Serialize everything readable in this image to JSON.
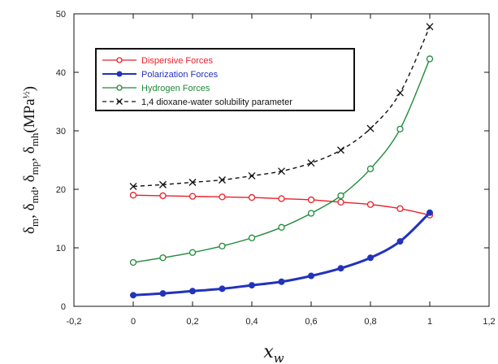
{
  "chart_data": {
    "type": "line",
    "title": "",
    "xlabel": "x_w",
    "ylabel": "δm, δmd, δmp, δmh(MPa½)",
    "xlim": [
      -0.2,
      1.2
    ],
    "ylim": [
      0,
      50
    ],
    "x_ticks": [
      "-0,2",
      "0",
      "0,2",
      "0,4",
      "0,6",
      "0,8",
      "1",
      "1,2"
    ],
    "x_tick_values": [
      -0.2,
      0,
      0.2,
      0.4,
      0.6,
      0.8,
      1.0,
      1.2
    ],
    "y_ticks": [
      "0",
      "10",
      "20",
      "30",
      "40",
      "50"
    ],
    "y_tick_values": [
      0,
      10,
      20,
      30,
      40,
      50
    ],
    "grid": false,
    "legend_position": "top-left",
    "x": [
      0,
      0.1,
      0.2,
      0.3,
      0.4,
      0.5,
      0.6,
      0.7,
      0.8,
      0.9,
      1.0
    ],
    "series": [
      {
        "name": "Dispersive Forces",
        "color": "#e8202a",
        "marker": "open-circle",
        "line": "solid",
        "values": [
          19.0,
          18.9,
          18.8,
          18.7,
          18.6,
          18.4,
          18.2,
          17.8,
          17.4,
          16.7,
          15.6
        ]
      },
      {
        "name": "Polarization Forces",
        "color": "#2233bb",
        "marker": "filled-circle",
        "line": "solid",
        "values": [
          1.9,
          2.2,
          2.6,
          3.0,
          3.6,
          4.2,
          5.2,
          6.5,
          8.3,
          11.1,
          16.0
        ]
      },
      {
        "name": "Hydrogen Forces",
        "color": "#1f8a3a",
        "marker": "open-circle",
        "line": "solid",
        "values": [
          7.5,
          8.3,
          9.2,
          10.3,
          11.7,
          13.5,
          15.9,
          18.9,
          23.5,
          30.3,
          42.3
        ]
      },
      {
        "name": "1,4 dioxane-water solubility parameter",
        "color": "#111111",
        "marker": "x",
        "line": "dashed",
        "values": [
          20.5,
          20.8,
          21.2,
          21.6,
          22.3,
          23.1,
          24.5,
          26.7,
          30.4,
          36.5,
          47.8
        ]
      }
    ]
  }
}
